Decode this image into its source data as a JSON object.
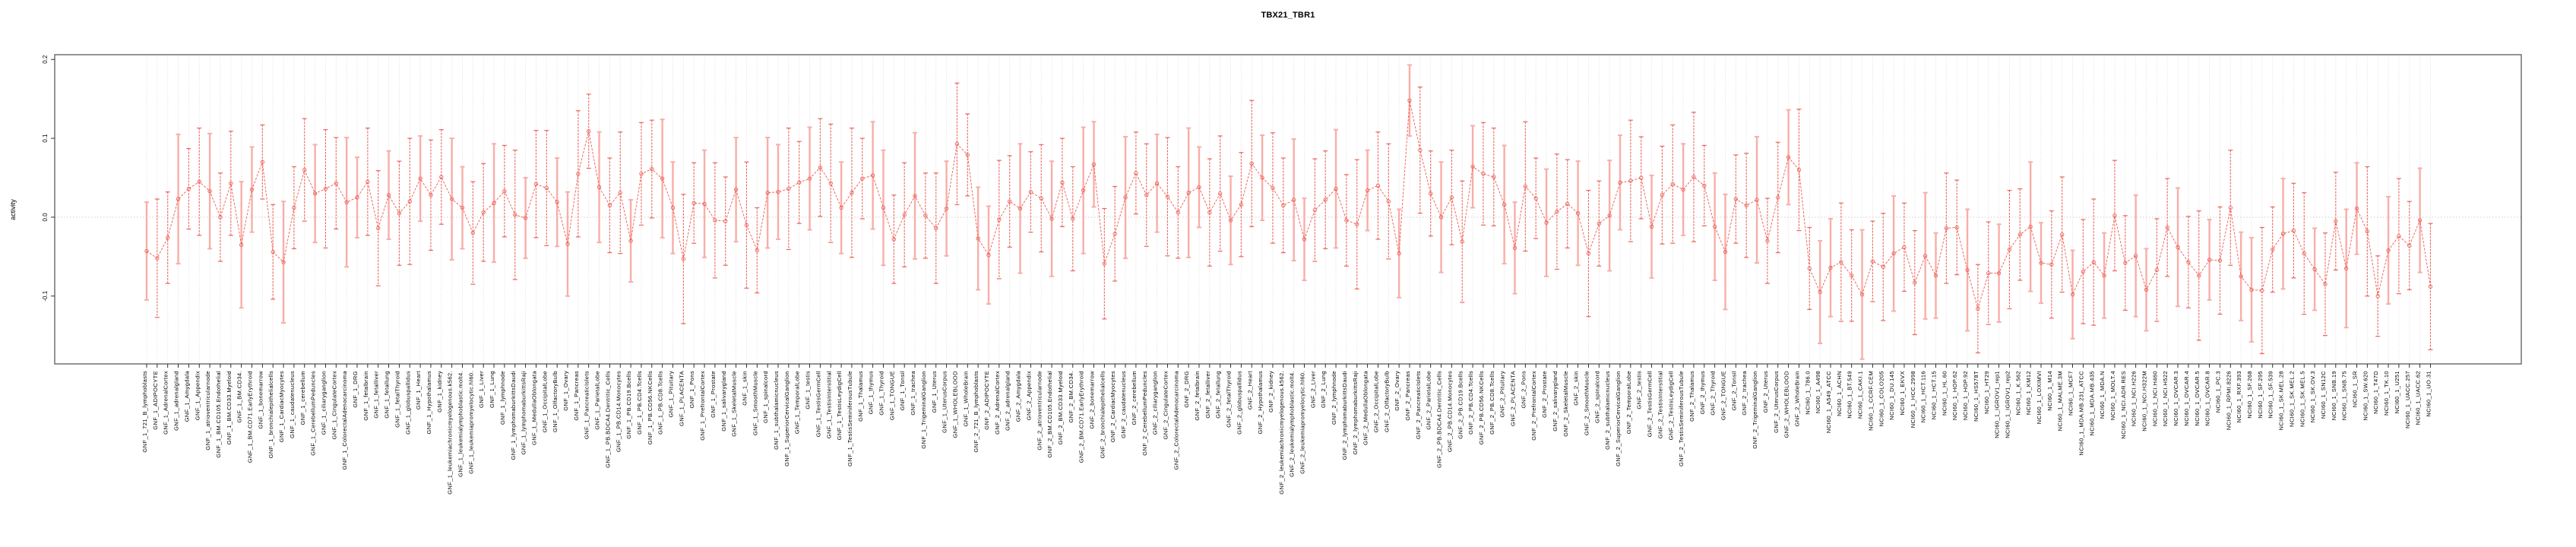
{
  "title": "TBX21_TBR1",
  "chart_data": {
    "type": "scatter",
    "title": "TBX21_TBR1",
    "xlabel": "",
    "ylabel": "activity",
    "ylim": [
      -0.186,
      0.206
    ],
    "yticks": [
      -0.1,
      0.0,
      0.1,
      0.2
    ],
    "ytick_labels": [
      "-0.1",
      "0.0",
      "0.1",
      "0.2"
    ],
    "grid": "vertical dotted line per category, dotted horizontal line at 0",
    "legend_position": "none",
    "marker": "open-circle with error bars, dashed connecting line",
    "colors": {
      "point": "#EE6157",
      "line": "#EF5A50",
      "errorbar_dark": "#ED655C",
      "errorbar_light": "#F8AEA8",
      "box": "#7a7a7a",
      "tick": "#1a1a1a",
      "grid": "#d8d8d8",
      "zero_line": "#cfcfcf"
    },
    "categories": [
      "GNF_1_721_B_lymphoblasts",
      "GNF_1_ADIPOCYTE",
      "GNF_1_AdrenalCortex",
      "GNF_1_adrenalgland",
      "GNF_1_Amygdala",
      "GNF_1_Appendix",
      "GNF_1_atrioventricularnode",
      "GNF_1_BM.CD105.Endothelial",
      "GNF_1_BM.CD33.Myeloid",
      "GNF_1_BM.CD34.",
      "GNF_1_BM.CD71.EarlyErythroid",
      "GNF_1_bonemarrow",
      "GNF_1_bronchialepithelialcells",
      "GNF_1_CardiacMyocytes",
      "GNF_1_caudatenucleus",
      "GNF_1_cerebellum",
      "GNF_1_CerebellumPeduncles",
      "GNF_1_ciliaryganglion",
      "GNF_1_CingulateCortex",
      "GNF_1_ColorectalAdenocarcinoma",
      "GNF_1_DRG",
      "GNF_1_fetalbrain",
      "GNF_1_fetalliver",
      "GNF_1_fetallung",
      "GNF_1_fetalThyroid",
      "GNF_1_globuspallidus",
      "GNF_1_Heart",
      "GNF_1_Hypothalamus",
      "GNF_1_kidney",
      "GNF_1_leukemiachronicmyelogenous.k562.",
      "GNF_1_leukemialymphoblastic.molt4.",
      "GNF_1_leukemiapromyelocytic.hl60.",
      "GNF_1_Liver",
      "GNF_1_Lung",
      "GNF_1_lymphnode",
      "GNF_1_lymphomaburkittsDaudi",
      "GNF_1_lymphomaburkittsRaji",
      "GNF_1_MedullaOblongata",
      "GNF_1_OccipitalLobe",
      "GNF_1_OlfactoryBulb",
      "GNF_1_Ovary",
      "GNF_1_Pancreas",
      "GNF_1_PancreaticIslets",
      "GNF_1_ParietalLobe",
      "GNF_1_PB.BDCA4.Dentritic_Cells",
      "GNF_1_PB.CD14.Monocytes",
      "GNF_1_PB.CD19.Bcells",
      "GNF_1_PB.CD4.Tcells",
      "GNF_1_PB.CD56.NKCells",
      "GNF_1_PB.CD8.Tcells",
      "GNF_1_Pituitary",
      "GNF_1_PLACENTA",
      "GNF_1_Pons",
      "GNF_1_PrefrontalCortex",
      "GNF_1_Prostate",
      "GNF_1_salivarygland",
      "GNF_1_SkeletalMuscle",
      "GNF_1_skin",
      "GNF_1_SmoothMuscle",
      "GNF_1_spinalcord",
      "GNF_1_subthalamicnucleus",
      "GNF_1_SuperiorCervicalGanglion",
      "GNF_1_TemporalLobe",
      "GNF_1_testis",
      "GNF_1_TestisGermCell",
      "GNF_1_TestisInterstitial",
      "GNF_1_TestisLeydigCell",
      "GNF_1_TestisSeminiferousTubule",
      "GNF_1_Thalamus",
      "GNF_1_thymus",
      "GNF_1_Thyroid",
      "GNF_1_TONGUE",
      "GNF_1_Tonsil",
      "GNF_1_trachea",
      "GNF_1_TrigeminalGanglion",
      "GNF_1_Uterus",
      "GNF_1_UterusCorpus",
      "GNF_1_WHOLEBLOOD",
      "GNF_1_WholeBrain",
      "GNF_2_721_B_lymphoblasts",
      "GNF_2_ADIPOCYTE",
      "GNF_2_AdrenalCortex",
      "GNF_2_adrenalgland",
      "GNF_2_Amygdala",
      "GNF_2_Appendix",
      "GNF_2_atrioventricularnode",
      "GNF_2_BM.CD105.Endothelial",
      "GNF_2_BM.CD33.Myeloid",
      "GNF_2_BM.CD34.",
      "GNF_2_BM.CD71.EarlyErythroid",
      "GNF_2_bonemarrow",
      "GNF_2_bronchialepithelialcells",
      "GNF_2_CardiacMyocytes",
      "GNF_2_caudatenucleus",
      "GNF_2_cerebellum",
      "GNF_2_CerebellumPeduncles",
      "GNF_2_ciliaryganglion",
      "GNF_2_CingulateCortex",
      "GNF_2_ColorectalAdenocarcinoma",
      "GNF_2_DRG",
      "GNF_2_fetalbrain",
      "GNF_2_fetalliver",
      "GNF_2_fetallung",
      "GNF_2_fetalThyroid",
      "GNF_2_globuspallidus",
      "GNF_2_Heart",
      "GNF_2_Hypothalamus",
      "GNF_2_kidney",
      "GNF_2_leukemiachronicmyelogenous.k562.",
      "GNF_2_leukemialymphoblastic.molt4.",
      "GNF_2_leukemiapromyelocytic.hl60.",
      "GNF_2_Liver",
      "GNF_2_Lung",
      "GNF_2_lymphnode",
      "GNF_2_lymphomaburkittsDaudi",
      "GNF_2_lymphomaburkittsRaji",
      "GNF_2_MedullaOblongata",
      "GNF_2_OccipitalLobe",
      "GNF_2_OlfactoryBulb",
      "GNF_2_Ovary",
      "GNF_2_Pancreas",
      "GNF_2_PancreaticIslets",
      "GNF_2_ParietalLobe",
      "GNF_2_PB.BDCA4.Dentritic_Cells",
      "GNF_2_PB.CD14.Monocytes",
      "GNF_2_PB.CD19.Bcells",
      "GNF_2_PB.CD4.Tcells",
      "GNF_2_PB.CD56.NKCells",
      "GNF_2_PB.CD8.Tcells",
      "GNF_2_Pituitary",
      "GNF_2_PLACENTA",
      "GNF_2_Pons",
      "GNF_2_PrefrontalCortex",
      "GNF_2_Prostate",
      "GNF_2_salivarygland",
      "GNF_2_SkeletalMuscle",
      "GNF_2_skin",
      "GNF_2_SmoothMuscle",
      "GNF_2_spinalcord",
      "GNF_2_subthalamicnucleus",
      "GNF_2_SuperiorCervicalGanglion",
      "GNF_2_TemporalLobe",
      "GNF_2_testis",
      "GNF_2_TestisGermCell",
      "GNF_2_TestisInterstitial",
      "GNF_2_TestisLeydigCell",
      "GNF_2_TestisSeminiferousTubule",
      "GNF_2_Thalamus",
      "GNF_2_thymus",
      "GNF_2_Thyroid",
      "GNF_2_TONGUE",
      "GNF_2_Tonsil",
      "GNF_2_trachea",
      "GNF_2_TrigeminalGanglion",
      "GNF_2_Uterus",
      "GNF_2_UterusCorpus",
      "GNF_2_WHOLEBLOOD",
      "GNF_2_WholeBrain",
      "NCI60_1_786.0",
      "NCI60_1_A498",
      "NCI60_1_A549_ATCC",
      "NCI60_1_ACHN",
      "NCI60_1_BT.549",
      "NCI60_1_CAKI.1",
      "NCI60_1_CCRF.CEM",
      "NCI60_1_COLO205",
      "NCI60_1_DU.145",
      "NCI60_1_EKVX",
      "NCI60_1_HCC.2998",
      "NCI60_1_HCT.116",
      "NCI60_1_HCT.15",
      "NCI60_1_HL.60",
      "NCI60_1_HOP.62",
      "NCI60_1_HOP.92",
      "NCI60_1_HS578T",
      "NCI60_1_HT29",
      "NCI60_1_IGROV1_rep1",
      "NCI60_1_IGROV1_rep2",
      "NCI60_1_K.562",
      "NCI60_1_KM12",
      "NCI60_1_LOXIMVI",
      "NCI60_1_M14",
      "NCI60_1_MALME.3M",
      "NCI60_1_MCF7",
      "NCI60_1_MDA.MB.231_ATCC",
      "NCI60_1_MDA.MB.435",
      "NCI60_1_MDA.N",
      "NCI60_1_MOLT.4",
      "NCI60_1_NCI.ADR.RES",
      "NCI60_1_NCI.H226",
      "NCI60_1_NCI.H322M",
      "NCI60_1_NCI.H460",
      "NCI60_1_NCI.H522",
      "NCI60_1_OVCAR.3",
      "NCI60_1_OVCAR.4",
      "NCI60_1_OVCAR.5",
      "NCI60_1_OVCAR.8",
      "NCI60_1_PC.3",
      "NCI60_1_RPMI.8226",
      "NCI60_1_RXF.393",
      "NCI60_1_SF.268",
      "NCI60_1_SF.295",
      "NCI60_1_SF.539",
      "NCI60_1_SK.MEL.28",
      "NCI60_1_SK.MEL.2",
      "NCI60_1_SK.MEL.5",
      "NCI60_1_SK.OV.3",
      "NCI60_1_SN12C",
      "NCI60_1_SNB.19",
      "NCI60_1_SNB.75",
      "NCI60_1_SR",
      "NCI60_1_SW.620",
      "NCI60_1_T47D",
      "NCI60_1_TK.10",
      "NCI60_1_U251",
      "NCI60_1_UACC.257",
      "NCI60_1_UACC.62",
      "NCI60_1_UO.31"
    ],
    "series": [
      {
        "name": "activity",
        "values": [
          -0.043,
          -0.052,
          -0.026,
          0.023,
          0.036,
          0.045,
          0.033,
          0.0,
          0.043,
          -0.035,
          0.035,
          0.07,
          -0.044,
          -0.057,
          0.012,
          0.06,
          0.03,
          0.036,
          0.043,
          0.019,
          0.025,
          0.045,
          -0.014,
          0.028,
          0.005,
          0.02,
          0.049,
          0.028,
          0.051,
          0.023,
          0.012,
          -0.02,
          0.006,
          0.018,
          0.033,
          0.003,
          -0.001,
          0.042,
          0.037,
          0.019,
          -0.034,
          0.055,
          0.109,
          0.038,
          0.015,
          0.031,
          -0.03,
          0.055,
          0.061,
          0.049,
          0.012,
          -0.053,
          0.018,
          0.017,
          -0.004,
          -0.005,
          0.035,
          -0.01,
          -0.042,
          0.031,
          0.032,
          0.036,
          0.044,
          0.049,
          0.063,
          0.043,
          0.012,
          0.031,
          0.049,
          0.053,
          0.012,
          -0.028,
          0.003,
          0.027,
          0.002,
          -0.014,
          0.011,
          0.093,
          0.079,
          -0.027,
          -0.048,
          -0.003,
          0.02,
          0.011,
          0.032,
          0.024,
          -0.002,
          0.044,
          -0.002,
          0.034,
          0.067,
          -0.059,
          -0.021,
          0.025,
          0.056,
          0.028,
          0.043,
          0.026,
          0.006,
          0.031,
          0.038,
          0.006,
          0.03,
          -0.004,
          0.016,
          0.068,
          0.05,
          0.037,
          0.015,
          0.022,
          -0.028,
          0.009,
          0.022,
          0.036,
          -0.004,
          -0.009,
          0.034,
          0.04,
          0.02,
          -0.046,
          0.148,
          0.085,
          0.03,
          0.0,
          0.025,
          -0.031,
          0.064,
          0.055,
          0.051,
          0.016,
          -0.039,
          0.039,
          0.024,
          -0.007,
          0.007,
          0.017,
          0.005,
          -0.046,
          -0.008,
          0.002,
          0.044,
          0.046,
          0.05,
          -0.012,
          0.028,
          0.042,
          0.035,
          0.051,
          0.04,
          -0.012,
          -0.044,
          0.023,
          0.015,
          0.022,
          -0.03,
          0.025,
          0.076,
          0.06,
          -0.065,
          -0.095,
          -0.064,
          -0.057,
          -0.074,
          -0.098,
          -0.056,
          -0.063,
          -0.046,
          -0.038,
          -0.083,
          -0.049,
          -0.074,
          -0.014,
          -0.013,
          -0.067,
          -0.116,
          -0.071,
          -0.071,
          -0.041,
          -0.022,
          -0.012,
          -0.058,
          -0.06,
          -0.022,
          -0.098,
          -0.069,
          -0.057,
          -0.074,
          0.002,
          -0.058,
          -0.049,
          -0.092,
          -0.067,
          -0.013,
          -0.038,
          -0.057,
          -0.074,
          -0.054,
          -0.055,
          0.012,
          -0.075,
          -0.092,
          -0.093,
          -0.041,
          -0.021,
          -0.017,
          -0.046,
          -0.066,
          -0.085,
          -0.005,
          -0.065,
          0.011,
          -0.018,
          -0.1,
          -0.042,
          -0.024,
          -0.036,
          -0.004,
          -0.088
        ],
        "errors": [
          0.062,
          0.075,
          0.058,
          0.082,
          0.051,
          0.068,
          0.073,
          0.056,
          0.066,
          0.08,
          0.054,
          0.047,
          0.06,
          0.077,
          0.052,
          0.065,
          0.062,
          0.075,
          0.058,
          0.082,
          0.051,
          0.068,
          0.073,
          0.056,
          0.066,
          0.08,
          0.054,
          0.07,
          0.06,
          0.077,
          0.052,
          0.065,
          0.062,
          0.075,
          0.058,
          0.082,
          0.051,
          0.068,
          0.073,
          0.056,
          0.066,
          0.08,
          0.047,
          0.07,
          0.06,
          0.077,
          0.052,
          0.065,
          0.062,
          0.075,
          0.058,
          0.082,
          0.051,
          0.068,
          0.073,
          0.056,
          0.066,
          0.08,
          0.054,
          0.07,
          0.06,
          0.077,
          0.052,
          0.065,
          0.062,
          0.075,
          0.058,
          0.082,
          0.051,
          0.068,
          0.073,
          0.056,
          0.066,
          0.08,
          0.054,
          0.07,
          0.06,
          0.077,
          0.052,
          0.065,
          0.062,
          0.075,
          0.058,
          0.082,
          0.051,
          0.068,
          0.073,
          0.056,
          0.066,
          0.08,
          0.054,
          0.07,
          0.06,
          0.077,
          0.052,
          0.065,
          0.062,
          0.075,
          0.058,
          0.082,
          0.051,
          0.068,
          0.073,
          0.056,
          0.066,
          0.08,
          0.054,
          0.07,
          0.06,
          0.077,
          0.052,
          0.065,
          0.062,
          0.075,
          0.058,
          0.082,
          0.051,
          0.068,
          0.073,
          0.056,
          0.045,
          0.08,
          0.054,
          0.07,
          0.06,
          0.077,
          0.052,
          0.065,
          0.062,
          0.075,
          0.058,
          0.082,
          0.051,
          0.068,
          0.073,
          0.056,
          0.066,
          0.08,
          0.054,
          0.07,
          0.06,
          0.077,
          0.052,
          0.065,
          0.062,
          0.075,
          0.058,
          0.082,
          0.051,
          0.068,
          0.073,
          0.056,
          0.066,
          0.08,
          0.054,
          0.07,
          0.06,
          0.077,
          0.052,
          0.065,
          0.062,
          0.075,
          0.058,
          0.082,
          0.051,
          0.068,
          0.073,
          0.056,
          0.066,
          0.08,
          0.054,
          0.07,
          0.06,
          0.077,
          0.056,
          0.065,
          0.062,
          0.075,
          0.058,
          0.082,
          0.051,
          0.068,
          0.073,
          0.056,
          0.066,
          0.08,
          0.054,
          0.07,
          0.06,
          0.077,
          0.052,
          0.065,
          0.062,
          0.075,
          0.058,
          0.082,
          0.051,
          0.068,
          0.073,
          0.056,
          0.066,
          0.08,
          0.054,
          0.07,
          0.06,
          0.077,
          0.052,
          0.065,
          0.062,
          0.075,
          0.058,
          0.082,
          0.051,
          0.068,
          0.073,
          0.056,
          0.066,
          0.08
        ]
      }
    ]
  }
}
